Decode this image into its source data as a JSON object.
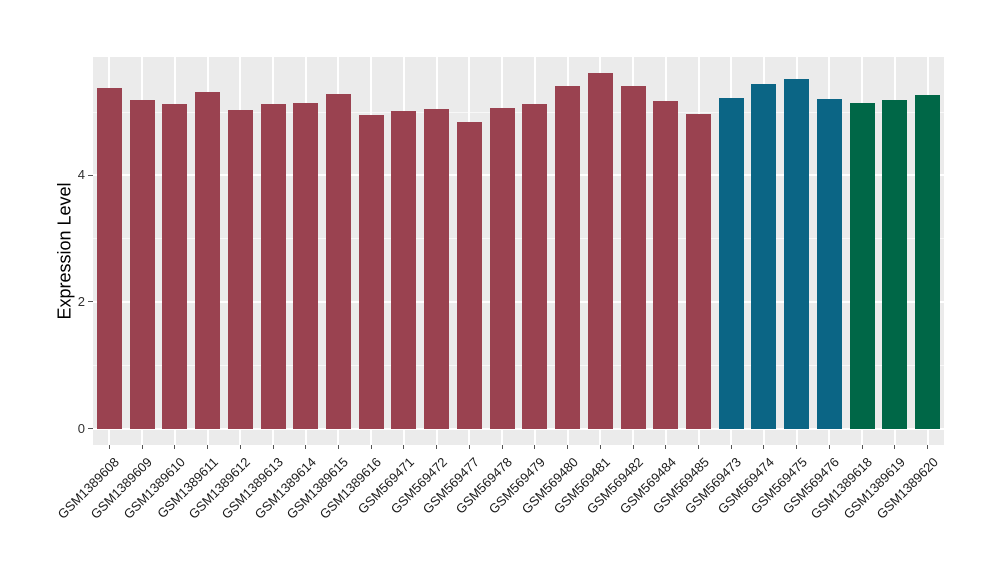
{
  "figure": {
    "background": "#FFFFFF",
    "panel_background": "#EBEBEB",
    "gridline_color": "#FFFFFF",
    "axis_tick_color": "#555555",
    "axis_text_color": "#1A1A1A"
  },
  "chart_data": {
    "type": "bar",
    "title": "",
    "xlabel": "",
    "ylabel": "Expression Level",
    "legend": "none",
    "grid": "on",
    "x_tick_rotation": 45,
    "y_ticks": [
      0,
      2,
      4
    ],
    "y_minor_ticks": [
      1,
      3,
      5
    ],
    "ylim": [
      -0.26,
      5.87
    ],
    "categories": [
      "GSM1389608",
      "GSM1389609",
      "GSM1389610",
      "GSM1389611",
      "GSM1389612",
      "GSM1389613",
      "GSM1389614",
      "GSM1389615",
      "GSM1389616",
      "GSM569471",
      "GSM569472",
      "GSM569477",
      "GSM569478",
      "GSM569479",
      "GSM569480",
      "GSM569481",
      "GSM569482",
      "GSM569484",
      "GSM569485",
      "GSM569473",
      "GSM569474",
      "GSM569475",
      "GSM569476",
      "GSM1389618",
      "GSM1389619",
      "GSM1389620"
    ],
    "series": [
      {
        "name": "Expression Level",
        "values": [
          5.38,
          5.19,
          5.13,
          5.31,
          5.03,
          5.13,
          5.14,
          5.29,
          4.95,
          5.02,
          5.05,
          4.85,
          5.06,
          5.13,
          5.41,
          5.61,
          5.41,
          5.17,
          4.97,
          5.22,
          5.45,
          5.53,
          5.21,
          5.14,
          5.19,
          5.27
        ]
      }
    ],
    "bar_colors": [
      "#9A4250",
      "#9A4250",
      "#9A4250",
      "#9A4250",
      "#9A4250",
      "#9A4250",
      "#9A4250",
      "#9A4250",
      "#9A4250",
      "#9A4250",
      "#9A4250",
      "#9A4250",
      "#9A4250",
      "#9A4250",
      "#9A4250",
      "#9A4250",
      "#9A4250",
      "#9A4250",
      "#9A4250",
      "#0B6585",
      "#0B6585",
      "#0B6585",
      "#0B6585",
      "#006747",
      "#006747",
      "#006747"
    ],
    "group_colors": {
      "group1": "#9A4250",
      "group2": "#0B6585",
      "group3": "#006747"
    }
  }
}
